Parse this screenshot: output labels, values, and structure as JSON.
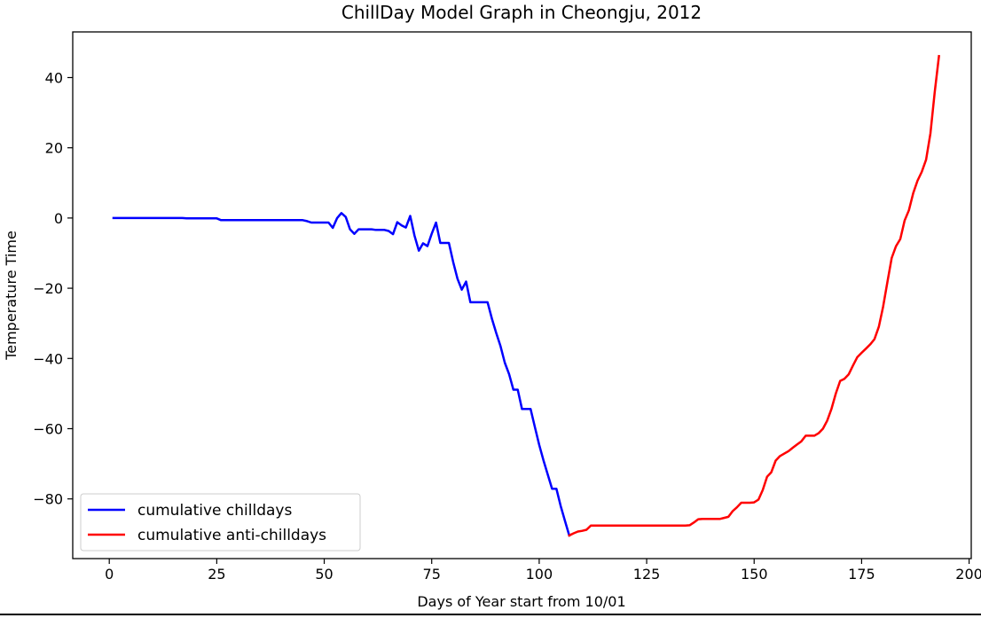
{
  "chart_data": {
    "type": "line",
    "title": "ChillDay Model Graph in Cheongju, 2012",
    "xlabel": "Days of Year start from 10/01",
    "ylabel": "Temperature Time",
    "xlim": [
      -8.5,
      200.5
    ],
    "ylim": [
      -97,
      53
    ],
    "xticks": [
      0,
      25,
      50,
      75,
      100,
      125,
      150,
      175,
      200
    ],
    "xtick_labels": [
      "0",
      "25",
      "50",
      "75",
      "100",
      "125",
      "150",
      "175",
      "200"
    ],
    "yticks": [
      -80,
      -60,
      -40,
      -20,
      0,
      20,
      40
    ],
    "ytick_labels": [
      "−80",
      "−60",
      "−40",
      "−20",
      "0",
      "20",
      "40"
    ],
    "grid": false,
    "legend_position": "lower-left",
    "series": [
      {
        "name": "cumulative chilldays",
        "color": "#0000ff",
        "points": [
          [
            1,
            0
          ],
          [
            17,
            0
          ],
          [
            18,
            -0.1
          ],
          [
            25,
            -0.1
          ],
          [
            26,
            -0.6
          ],
          [
            45,
            -0.6
          ],
          [
            46,
            -0.9
          ],
          [
            47,
            -1.3
          ],
          [
            50,
            -1.3
          ],
          [
            51,
            -1.3
          ],
          [
            52,
            -2.8
          ],
          [
            53,
            0
          ],
          [
            54,
            1.4
          ],
          [
            55,
            0.3
          ],
          [
            56,
            -3.2
          ],
          [
            57,
            -4.5
          ],
          [
            58,
            -3.2
          ],
          [
            61,
            -3.2
          ],
          [
            62,
            -3.4
          ],
          [
            64,
            -3.4
          ],
          [
            65,
            -3.7
          ],
          [
            66,
            -4.6
          ],
          [
            67,
            -1.2
          ],
          [
            68,
            -2.1
          ],
          [
            69,
            -2.7
          ],
          [
            70,
            0.6
          ],
          [
            71,
            -5
          ],
          [
            72,
            -9.3
          ],
          [
            73,
            -7.2
          ],
          [
            74,
            -8
          ],
          [
            75,
            -4.5
          ],
          [
            76,
            -1.3
          ],
          [
            77,
            -7.1
          ],
          [
            78,
            -7.1
          ],
          [
            79,
            -7.1
          ],
          [
            80,
            -12.5
          ],
          [
            81,
            -17.3
          ],
          [
            82,
            -20.4
          ],
          [
            83,
            -18.1
          ],
          [
            84,
            -24
          ],
          [
            85,
            -24
          ],
          [
            86,
            -24
          ],
          [
            87,
            -24
          ],
          [
            88,
            -24
          ],
          [
            89,
            -28.7
          ],
          [
            90,
            -32.7
          ],
          [
            91,
            -36.5
          ],
          [
            92,
            -41.2
          ],
          [
            93,
            -44.5
          ],
          [
            94,
            -48.9
          ],
          [
            95,
            -48.9
          ],
          [
            96,
            -54.4
          ],
          [
            97,
            -54.4
          ],
          [
            98,
            -54.4
          ],
          [
            99,
            -59.5
          ],
          [
            100,
            -64.6
          ],
          [
            101,
            -69
          ],
          [
            102,
            -73.1
          ],
          [
            103,
            -77.1
          ],
          [
            104,
            -77.1
          ],
          [
            105,
            -82
          ],
          [
            106,
            -86.3
          ],
          [
            107,
            -90.4
          ]
        ]
      },
      {
        "name": "cumulative anti-chilldays",
        "color": "#ff0000",
        "points": [
          [
            107,
            -90.4
          ],
          [
            108,
            -89.8
          ],
          [
            109,
            -89.3
          ],
          [
            110,
            -89.1
          ],
          [
            111,
            -88.8
          ],
          [
            112,
            -87.6
          ],
          [
            113,
            -87.6
          ],
          [
            120,
            -87.6
          ],
          [
            125,
            -87.6
          ],
          [
            130,
            -87.6
          ],
          [
            134,
            -87.6
          ],
          [
            135,
            -87.5
          ],
          [
            136,
            -86.7
          ],
          [
            137,
            -85.8
          ],
          [
            138,
            -85.7
          ],
          [
            142,
            -85.7
          ],
          [
            143,
            -85.4
          ],
          [
            144,
            -85.1
          ],
          [
            145,
            -83.5
          ],
          [
            146,
            -82.4
          ],
          [
            147,
            -81.1
          ],
          [
            148,
            -81.1
          ],
          [
            149,
            -81.1
          ],
          [
            150,
            -81
          ],
          [
            151,
            -80.2
          ],
          [
            152,
            -77.5
          ],
          [
            153,
            -73.7
          ],
          [
            154,
            -72.4
          ],
          [
            155,
            -69.1
          ],
          [
            156,
            -67.8
          ],
          [
            157,
            -67.1
          ],
          [
            158,
            -66.4
          ],
          [
            159,
            -65.4
          ],
          [
            160,
            -64.5
          ],
          [
            161,
            -63.6
          ],
          [
            162,
            -62
          ],
          [
            163,
            -62
          ],
          [
            164,
            -62
          ],
          [
            165,
            -61.3
          ],
          [
            166,
            -60
          ],
          [
            167,
            -57.7
          ],
          [
            168,
            -54.3
          ],
          [
            169,
            -50
          ],
          [
            170,
            -46.4
          ],
          [
            171,
            -45.8
          ],
          [
            172,
            -44.5
          ],
          [
            173,
            -42
          ],
          [
            174,
            -39.6
          ],
          [
            175,
            -38.4
          ],
          [
            176,
            -37.2
          ],
          [
            177,
            -36
          ],
          [
            178,
            -34.5
          ],
          [
            179,
            -31
          ],
          [
            180,
            -25.3
          ],
          [
            181,
            -18.2
          ],
          [
            182,
            -11.4
          ],
          [
            183,
            -8
          ],
          [
            184,
            -6
          ],
          [
            185,
            -0.7
          ],
          [
            186,
            2.2
          ],
          [
            187,
            7.1
          ],
          [
            188,
            10.6
          ],
          [
            189,
            13.2
          ],
          [
            190,
            16.6
          ],
          [
            191,
            24.1
          ],
          [
            192,
            35.8
          ],
          [
            193,
            46.1
          ]
        ]
      }
    ]
  }
}
